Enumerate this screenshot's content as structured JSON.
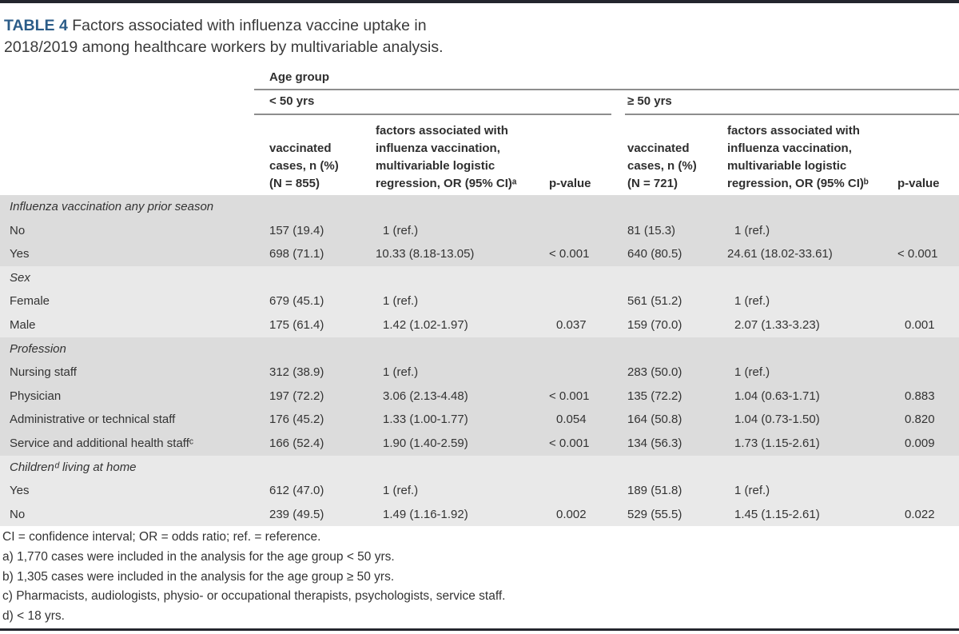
{
  "title": {
    "number": "TABLE 4",
    "line1": "Factors associated with influenza vaccine uptake in",
    "line2": "2018/2019 among healthcare workers by multivariable analysis."
  },
  "header": {
    "age_group": "Age group",
    "groups": [
      {
        "label": "< 50 yrs",
        "vacc_lines": [
          "vaccinated",
          "cases, n (%)",
          "(N = 855)"
        ],
        "or_lines": [
          "factors associated with",
          "influenza vaccination,",
          "multivariable logistic",
          "regression, OR (95% CI)ᵃ"
        ],
        "pvalue": "p-value"
      },
      {
        "label": "≥ 50 yrs",
        "vacc_lines": [
          "vaccinated",
          "cases, n (%)",
          "(N = 721)"
        ],
        "or_lines": [
          "factors associated with",
          "influenza vaccination,",
          "multivariable logistic",
          "regression, OR (95% CI)ᵇ"
        ],
        "pvalue": "p-value"
      }
    ]
  },
  "table": {
    "sections": [
      {
        "header": "Influenza vaccination any prior season",
        "shade": "dark",
        "rows": [
          {
            "label": "No",
            "cells": [
              "157 (19.4)",
              "1 (ref.)",
              "",
              "81 (15.3)",
              "1 (ref.)",
              ""
            ]
          },
          {
            "label": "Yes",
            "cells": [
              "698 (71.1)",
              "10.33 (8.18-13.05)",
              "< 0.001",
              "640 (80.5)",
              "24.61 (18.02-33.61)",
              "< 0.001"
            ]
          }
        ]
      },
      {
        "header": "Sex",
        "shade": "light",
        "rows": [
          {
            "label": "Female",
            "cells": [
              "679 (45.1)",
              "1 (ref.)",
              "",
              "561 (51.2)",
              "1 (ref.)",
              ""
            ]
          },
          {
            "label": "Male",
            "cells": [
              "175 (61.4)",
              "1.42 (1.02-1.97)",
              "0.037",
              "159 (70.0)",
              "2.07 (1.33-3.23)",
              "0.001"
            ]
          }
        ]
      },
      {
        "header": "Profession",
        "shade": "dark",
        "rows": [
          {
            "label": "Nursing staff",
            "cells": [
              "312 (38.9)",
              "1 (ref.)",
              "",
              "283 (50.0)",
              "1 (ref.)",
              ""
            ]
          },
          {
            "label": "Physician",
            "cells": [
              "197 (72.2)",
              "3.06 (2.13-4.48)",
              "< 0.001",
              "135 (72.2)",
              "1.04 (0.63-1.71)",
              "0.883"
            ]
          },
          {
            "label": "Administrative or technical staff",
            "cells": [
              "176 (45.2)",
              "1.33 (1.00-1.77)",
              "0.054",
              "164 (50.8)",
              "1.04 (0.73-1.50)",
              "0.820"
            ]
          },
          {
            "label": "Service and additional health staffᶜ",
            "cells": [
              "166 (52.4)",
              "1.90 (1.40-2.59)",
              "< 0.001",
              "134 (56.3)",
              "1.73 (1.15-2.61)",
              "0.009"
            ]
          }
        ]
      },
      {
        "header": "Childrenᵈ living at home",
        "shade": "light",
        "rows": [
          {
            "label": "Yes",
            "cells": [
              "612 (47.0)",
              "1 (ref.)",
              "",
              "189 (51.8)",
              "1 (ref.)",
              ""
            ]
          },
          {
            "label": "No",
            "cells": [
              "239 (49.5)",
              "1.49 (1.16-1.92)",
              "0.002",
              "529 (55.5)",
              "1.45 (1.15-2.61)",
              "0.022"
            ]
          }
        ]
      }
    ]
  },
  "footnotes": [
    "CI = confidence interval; OR = odds ratio; ref. = reference.",
    "a) 1,770 cases were included in the analysis for the age group < 50 yrs.",
    "b) 1,305 cases were included in the analysis for the age group ≥ 50 yrs.",
    "c) Pharmacists, audiologists, physio- or occupational therapists, psychologists, service staff.",
    "d) < 18 yrs."
  ],
  "colors": {
    "accent_blue": "#2b5c88",
    "band_dark": "#dcdcdc",
    "band_light": "#e9e9e9",
    "border_dark": "#24262e",
    "rule_gray": "#8d8d8d",
    "text": "#333333"
  }
}
